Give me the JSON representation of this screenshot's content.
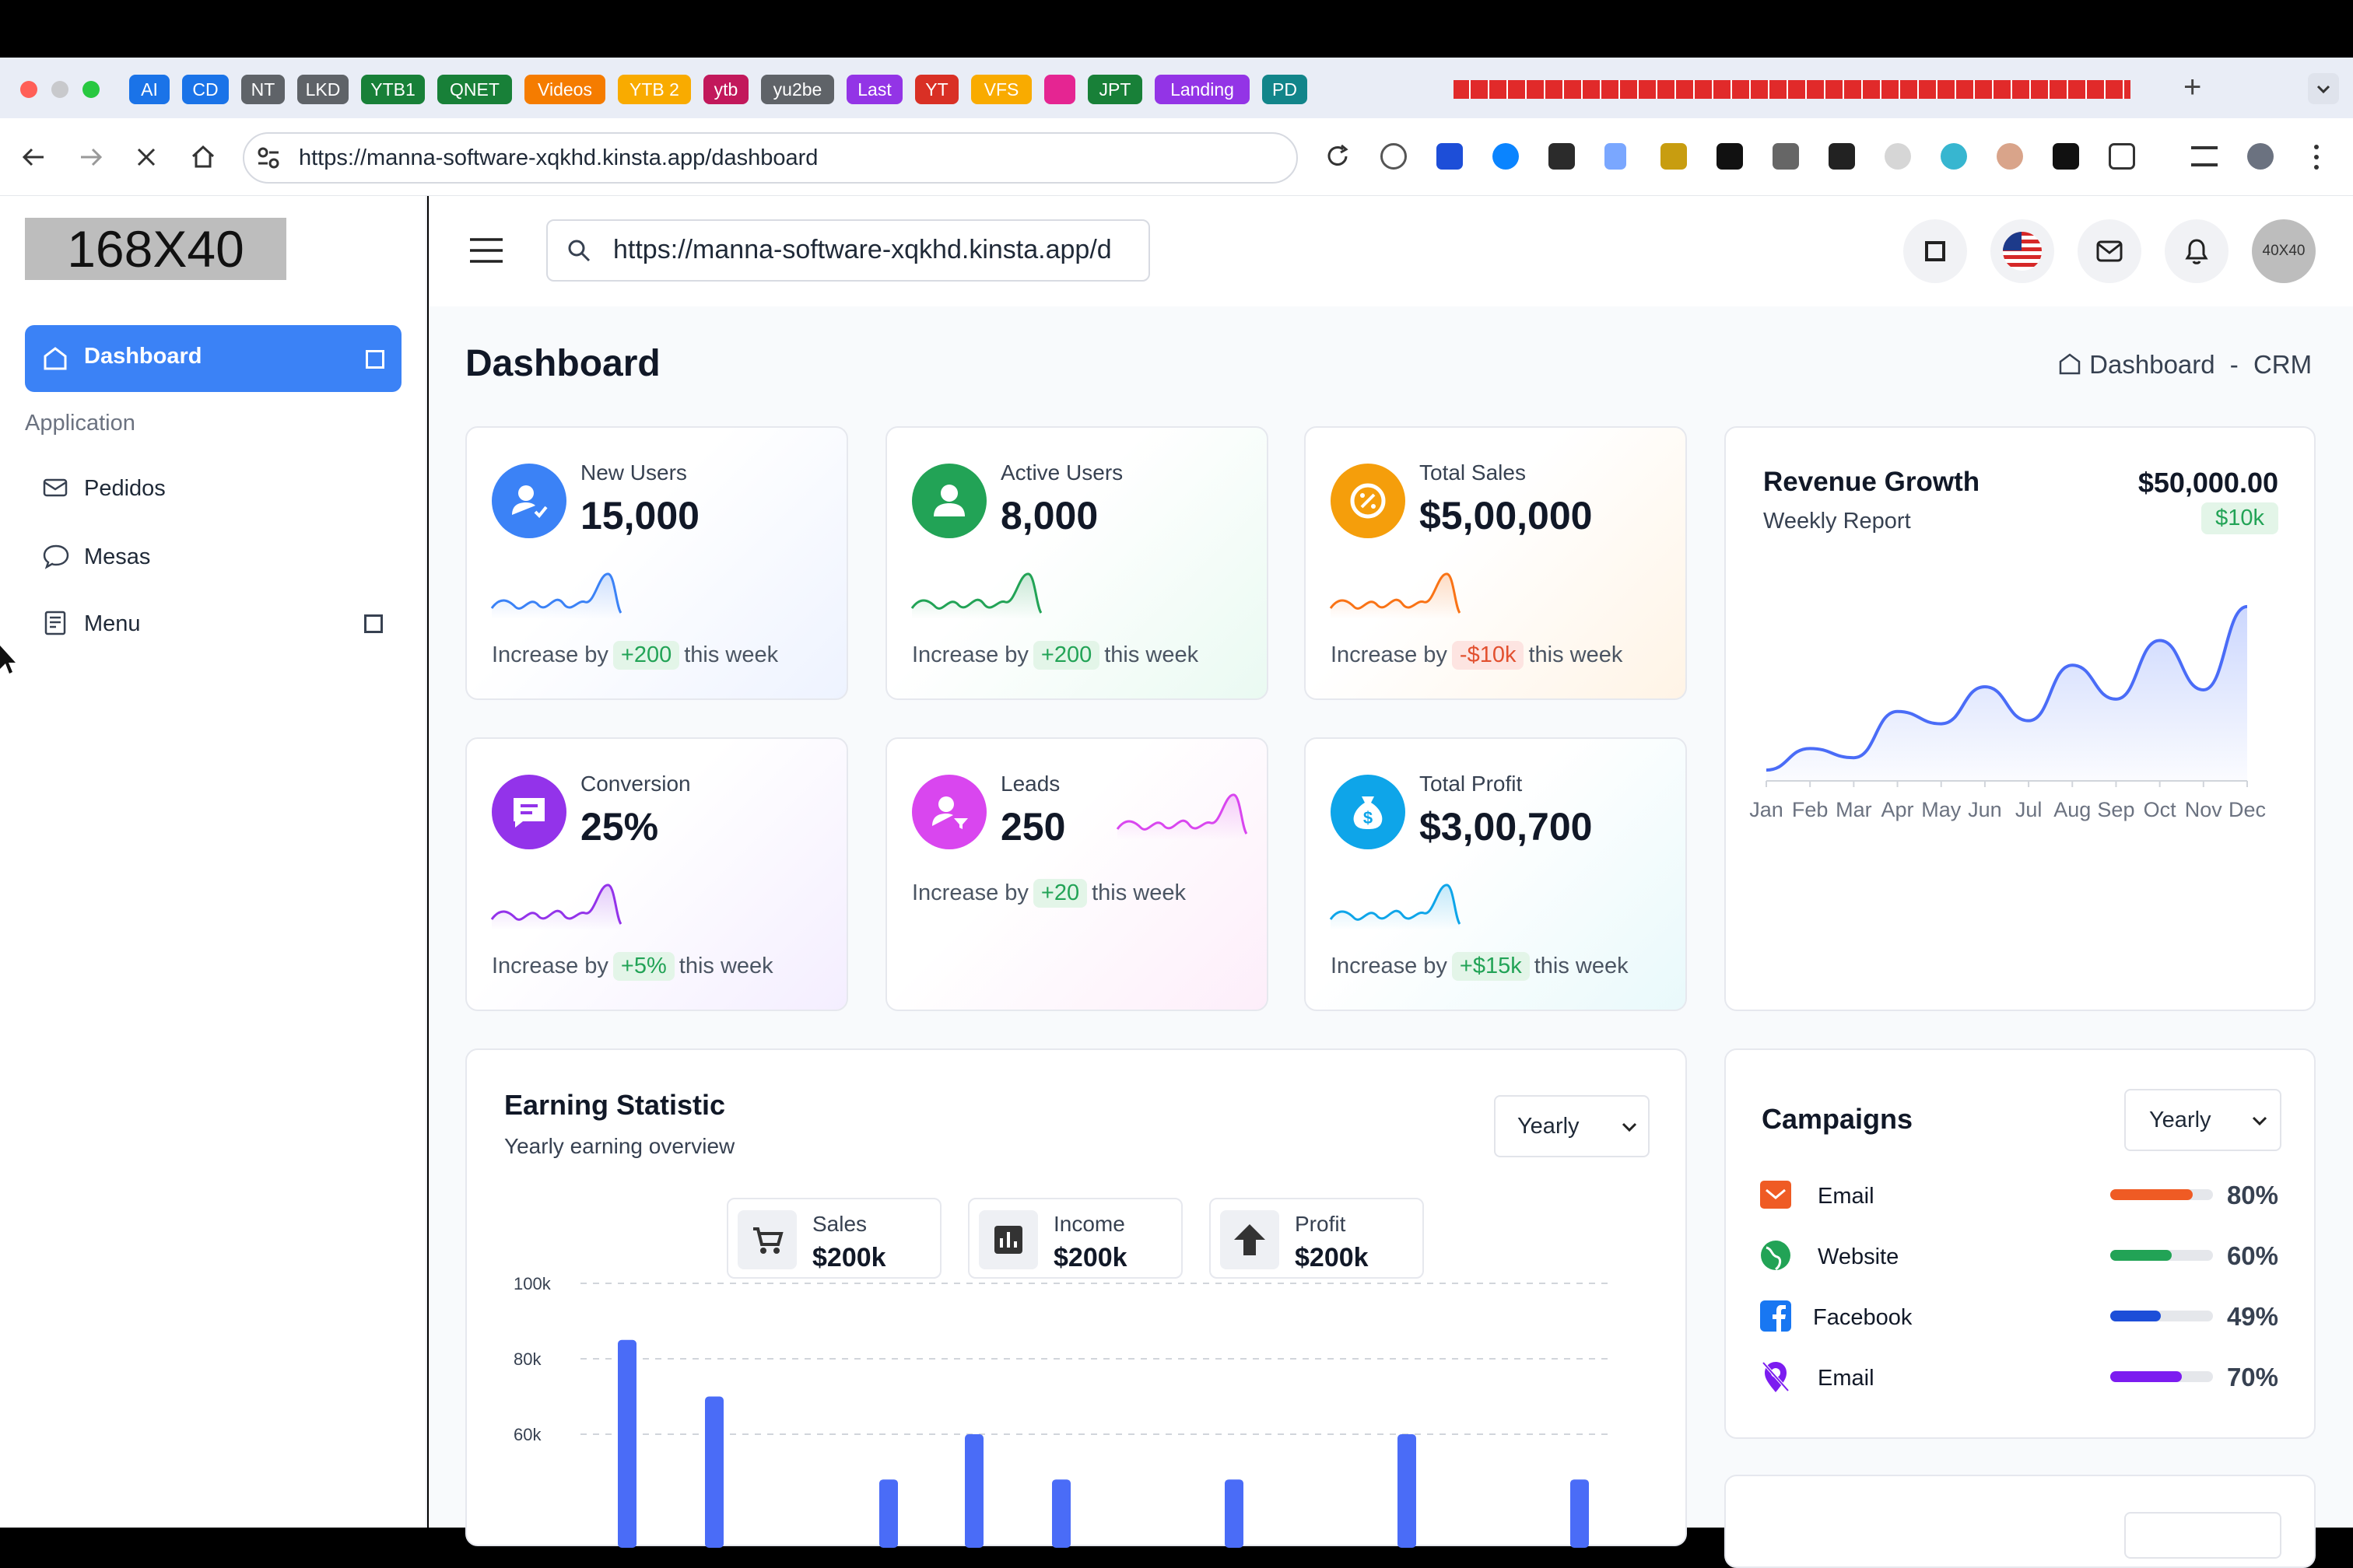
{
  "browser": {
    "bookmarks": [
      {
        "label": "AI",
        "color": "#1a73e8"
      },
      {
        "label": "CD",
        "color": "#1a73e8"
      },
      {
        "label": "NT",
        "color": "#5f6368"
      },
      {
        "label": "LKD",
        "color": "#5f6368"
      },
      {
        "label": "YTB1",
        "color": "#188038"
      },
      {
        "label": "QNET",
        "color": "#188038"
      },
      {
        "label": "Videos",
        "color": "#f57c00"
      },
      {
        "label": "YTB 2",
        "color": "#f9ab00"
      },
      {
        "label": "ytb",
        "color": "#c2185b"
      },
      {
        "label": "yu2be",
        "color": "#5f6368"
      },
      {
        "label": "Last",
        "color": "#9334e6"
      },
      {
        "label": "YT",
        "color": "#d93025"
      },
      {
        "label": "VFS",
        "color": "#f9ab00"
      },
      {
        "label": "",
        "color": "#e52592"
      },
      {
        "label": "JPT",
        "color": "#188038"
      },
      {
        "label": "Landing",
        "color": "#9334e6"
      },
      {
        "label": "PD",
        "color": "#12858a"
      }
    ],
    "new_tab": "+",
    "url": "https://manna-software-xqkhd.kinsta.app/dashboard"
  },
  "sidebar": {
    "logo": "168X40",
    "active": "Dashboard",
    "section": "Application",
    "items": [
      "Pedidos",
      "Mesas",
      "Menu"
    ]
  },
  "header": {
    "search_value": "https://manna-software-xqkhd.kinsta.app/d",
    "avatar": "40X40"
  },
  "page": {
    "title": "Dashboard",
    "breadcrumb_home": "Dashboard",
    "breadcrumb_sep": "-",
    "breadcrumb_current": "CRM"
  },
  "stats": [
    {
      "title": "New Users",
      "value": "15,000",
      "prefix": "Increase by",
      "delta": "+200",
      "suffix": "this week",
      "color": "#3b82f6",
      "icon": "user-check-icon"
    },
    {
      "title": "Active Users",
      "value": "8,000",
      "prefix": "Increase by",
      "delta": "+200",
      "suffix": "this week",
      "color": "#22a356",
      "icon": "user-icon"
    },
    {
      "title": "Total Sales",
      "value": "$5,00,000",
      "prefix": "Increase by",
      "delta": "-$10k",
      "suffix": "this week",
      "color": "#f59e0b",
      "icon": "discount-icon"
    },
    {
      "title": "Conversion",
      "value": "25%",
      "prefix": "Increase by",
      "delta": "+5%",
      "suffix": "this week",
      "color": "#9333ea",
      "icon": "message-icon"
    },
    {
      "title": "Leads",
      "value": "250",
      "prefix": "Increase by",
      "delta": "+20",
      "suffix": "this week",
      "color": "#d946ef",
      "icon": "user-filter-icon"
    },
    {
      "title": "Total Profit",
      "value": "$3,00,700",
      "prefix": "Increase by",
      "delta": "+$15k",
      "suffix": "this week",
      "color": "#0ea5e9",
      "icon": "money-bag-icon"
    }
  ],
  "revenue": {
    "title": "Revenue Growth",
    "subtitle": "Weekly Report",
    "amount": "$50,000.00",
    "badge": "$10k"
  },
  "earning": {
    "title": "Earning Statistic",
    "subtitle": "Yearly earning overview",
    "select": "Yearly",
    "summary": [
      {
        "label": "Sales",
        "value": "$200k",
        "icon": "cart-icon"
      },
      {
        "label": "Income",
        "value": "$200k",
        "icon": "bar-chart-icon"
      },
      {
        "label": "Profit",
        "value": "$200k",
        "icon": "arrow-up-icon"
      }
    ]
  },
  "campaigns": {
    "title": "Campaigns",
    "select": "Yearly",
    "items": [
      {
        "name": "Email",
        "percent": "80%",
        "value": 80,
        "color": "#ef5b24",
        "icon": "email-icon"
      },
      {
        "name": "Website",
        "percent": "60%",
        "value": 60,
        "color": "#22a356",
        "icon": "globe-icon"
      },
      {
        "name": "Facebook",
        "percent": "49%",
        "value": 49,
        "color": "#1d4ed8",
        "icon": "facebook-icon"
      },
      {
        "name": "Email",
        "percent": "70%",
        "value": 70,
        "color": "#7c1cf0",
        "icon": "map-pin-off-icon"
      }
    ]
  },
  "chart_data": [
    {
      "type": "area",
      "categories": [
        "Jan",
        "Feb",
        "Mar",
        "Apr",
        "May",
        "Jun",
        "Jul",
        "Aug",
        "Sep",
        "Oct",
        "Nov",
        "Dec"
      ],
      "values": [
        4,
        18,
        12,
        42,
        34,
        58,
        36,
        72,
        50,
        88,
        56,
        110
      ],
      "xlabel": "",
      "ylabel": "",
      "grid": false
    },
    {
      "type": "bar",
      "yticks": [
        "100k",
        "80k",
        "60k"
      ],
      "ylim": [
        0,
        100
      ],
      "values": [
        85,
        70,
        48,
        60,
        48,
        48,
        60,
        48
      ],
      "grid": true
    }
  ]
}
